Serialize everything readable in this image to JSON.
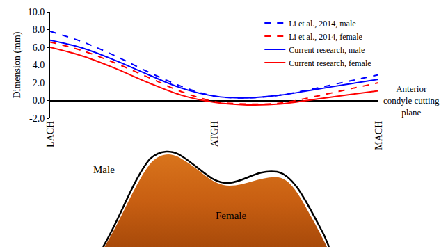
{
  "chart_data": {
    "type": "line",
    "y_label": "Dimension (mm)",
    "categories": [
      "LACH",
      null,
      null,
      null,
      null,
      "ATGH",
      null,
      null,
      null,
      null,
      "MACH"
    ],
    "series": [
      {
        "name": "Li et al., 2014, male",
        "color": "#0000ff",
        "line_style": "dash",
        "values": [
          7.8,
          6.6,
          5.0,
          3.2,
          1.6,
          0.5,
          0.3,
          0.6,
          1.3,
          2.1,
          2.9
        ]
      },
      {
        "name": "Li et al., 2014, female",
        "color": "#ff0000",
        "line_style": "dash",
        "values": [
          6.6,
          5.6,
          4.2,
          2.6,
          1.0,
          -0.1,
          -0.4,
          -0.3,
          0.4,
          1.2,
          2.0
        ]
      },
      {
        "name": "Current research, male",
        "color": "#0000ff",
        "line_style": "solid",
        "values": [
          6.8,
          5.9,
          4.5,
          2.9,
          1.4,
          0.5,
          0.3,
          0.6,
          1.2,
          1.8,
          2.4
        ]
      },
      {
        "name": "Current research, female",
        "color": "#ff0000",
        "line_style": "solid",
        "values": [
          6.0,
          5.0,
          3.6,
          2.0,
          0.6,
          -0.2,
          -0.5,
          -0.4,
          0.1,
          0.6,
          1.1
        ]
      }
    ],
    "ylim": [
      -2,
      10
    ],
    "yticks": [
      {
        "value": -2,
        "label": "-2.0"
      },
      {
        "value": 0,
        "label": "0.0"
      },
      {
        "value": 2,
        "label": "2.0"
      },
      {
        "value": 4,
        "label": "4.0"
      },
      {
        "value": 6,
        "label": "6.0"
      },
      {
        "value": 8,
        "label": "8.0"
      },
      {
        "value": 10,
        "label": "10.0"
      }
    ],
    "annotations": [
      {
        "text": "Anterior condyle cutting plane",
        "y": 0
      }
    ],
    "legend": "top right",
    "grid": false
  },
  "illustration": {
    "labels": {
      "male": "Male",
      "female": "Female"
    }
  }
}
